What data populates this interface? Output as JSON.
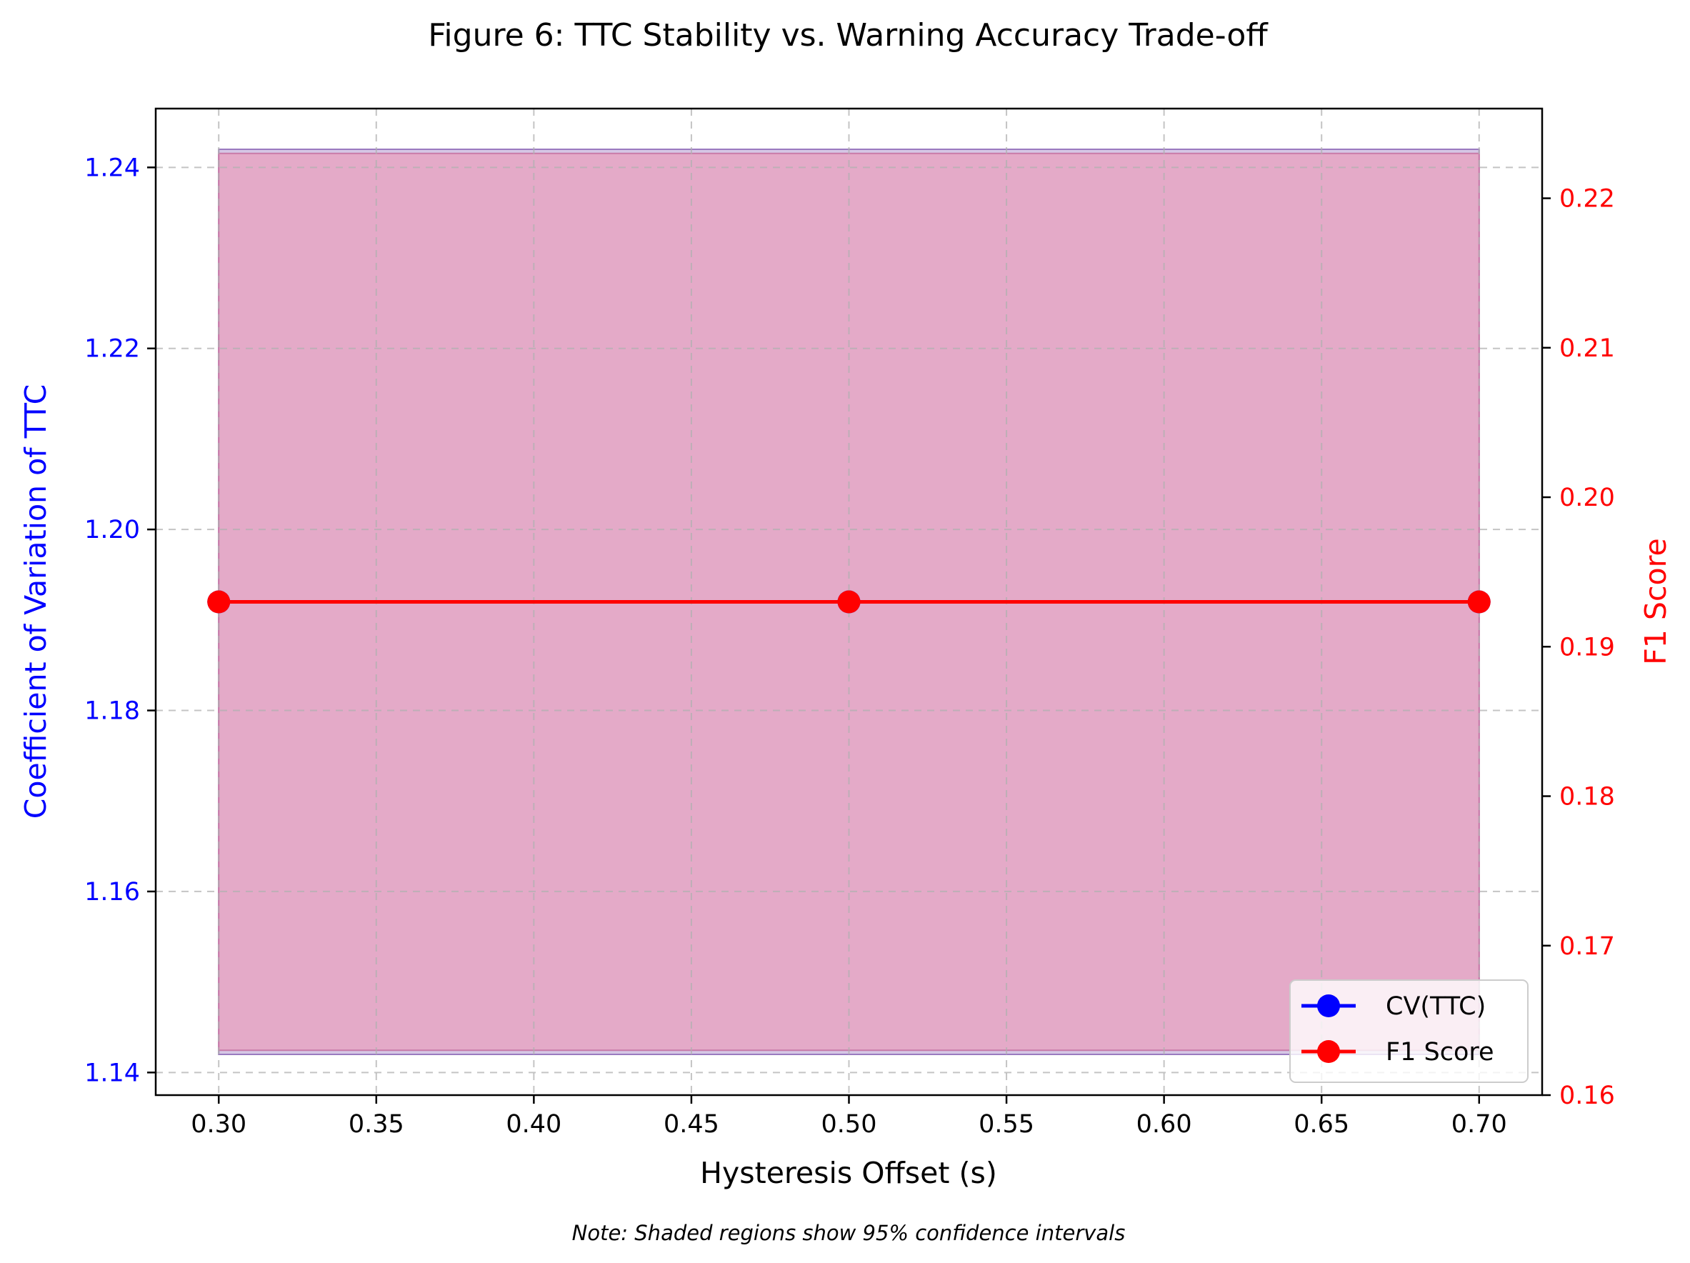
{
  "chart_data": {
    "type": "line",
    "title": "Figure 6: TTC Stability vs. Warning Accuracy Trade-off",
    "xlabel": "Hysteresis Offset (s)",
    "ylabel_left": "Coefficient of Variation of TTC",
    "ylabel_right": "F1 Score",
    "x": [
      0.3,
      0.5,
      0.7
    ],
    "xlim": [
      0.28,
      0.72
    ],
    "ylim_left": [
      1.1375,
      1.2465
    ],
    "ylim_right": [
      0.16,
      0.226
    ],
    "x_ticks": [
      "0.30",
      "0.35",
      "0.40",
      "0.45",
      "0.50",
      "0.55",
      "0.60",
      "0.65",
      "0.70"
    ],
    "y_left_ticks": [
      "1.14",
      "1.16",
      "1.18",
      "1.20",
      "1.22",
      "1.24"
    ],
    "y_right_ticks": [
      "0.16",
      "0.17",
      "0.18",
      "0.19",
      "0.20",
      "0.21",
      "0.22"
    ],
    "grid": true,
    "series": [
      {
        "name": "CV(TTC)",
        "axis": "left",
        "color": "#0000ff",
        "values": [
          1.192,
          1.192,
          1.192
        ],
        "ci_lower": [
          1.142,
          1.142,
          1.142
        ],
        "ci_upper": [
          1.242,
          1.242,
          1.242
        ]
      },
      {
        "name": "F1 Score",
        "axis": "right",
        "color": "#ff0000",
        "values": [
          0.193,
          0.193,
          0.193
        ],
        "ci_lower": [
          0.163,
          0.163,
          0.163
        ],
        "ci_upper": [
          0.223,
          0.223,
          0.223
        ]
      }
    ],
    "shade_color": "#d6a0ca",
    "legend": "bottom-right",
    "note": "Note: Shaded regions show 95% confidence intervals"
  }
}
